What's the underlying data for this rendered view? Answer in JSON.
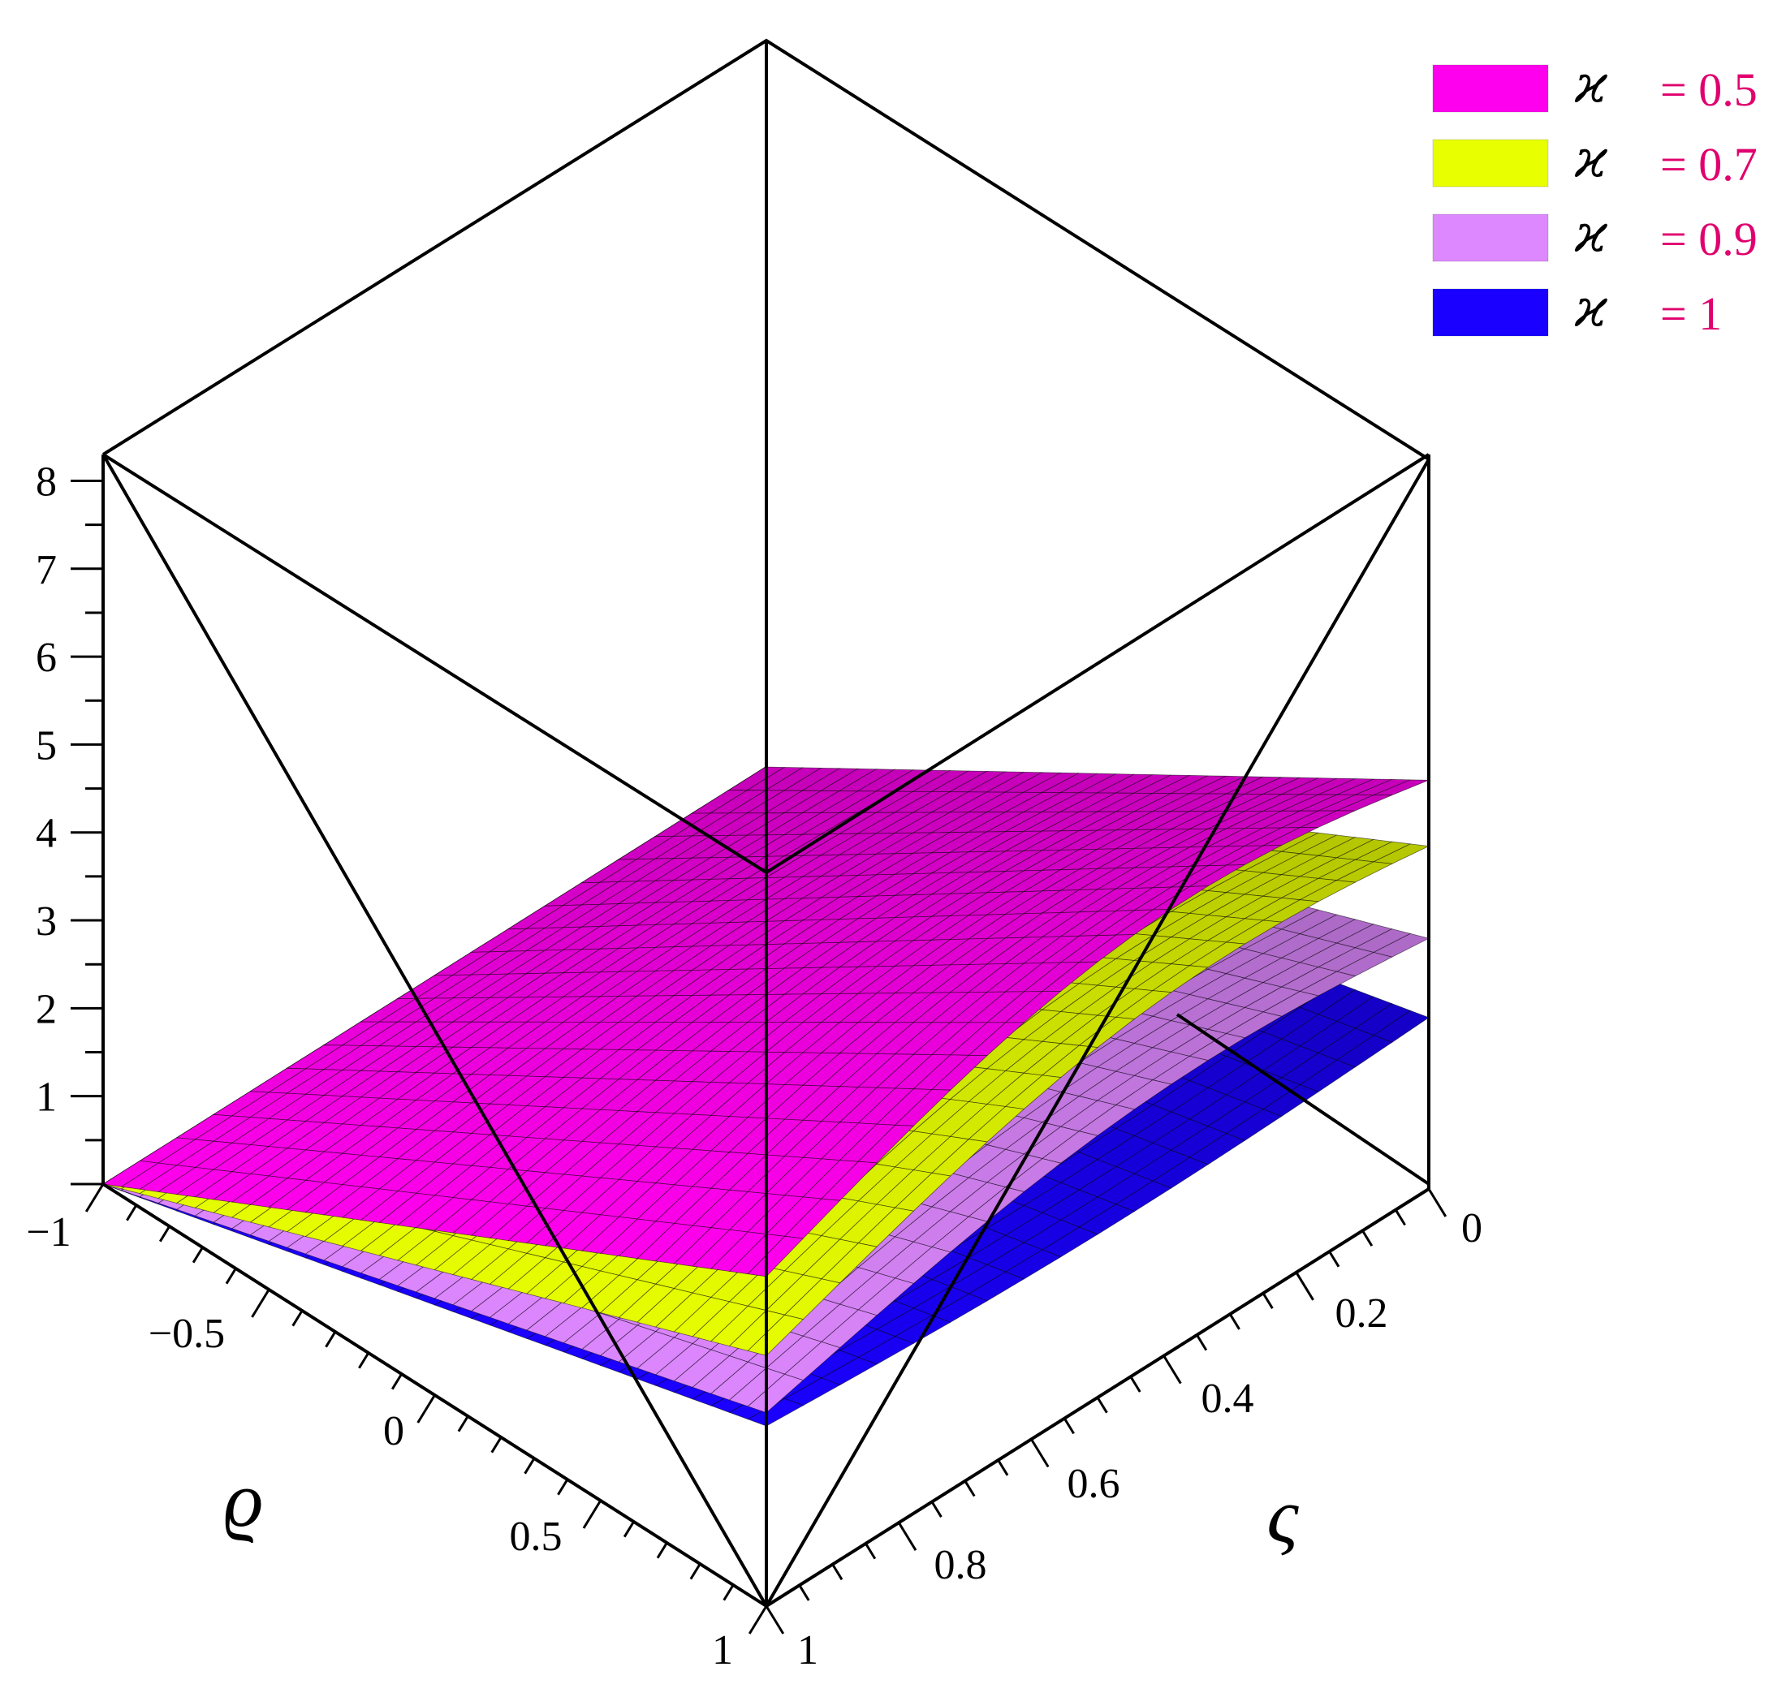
{
  "chart_data": {
    "type": "surface3d",
    "title": "",
    "axes": {
      "x": {
        "label": "ϱ",
        "range": [
          -1,
          1
        ],
        "ticks": [
          "−1",
          "−0.5",
          "0",
          "0.5",
          "1"
        ]
      },
      "y": {
        "label": "ς",
        "range": [
          0,
          1
        ],
        "ticks": [
          "0",
          "0.2",
          "0.4",
          "0.6",
          "0.8",
          "1"
        ]
      },
      "z": {
        "label": "",
        "range": [
          0,
          8.3
        ],
        "ticks": [
          "1",
          "2",
          "3",
          "4",
          "5",
          "6",
          "7",
          "8"
        ]
      }
    },
    "legend": {
      "placement": "top-right",
      "symbol": "ϰ",
      "value_color": "#e0006e"
    },
    "series": [
      {
        "name": "ϰ  = 0.5",
        "parameter": 0.5,
        "color": "#ff00ee",
        "z_at_x_minus1": 0,
        "z_at_x1_y0": 4.65,
        "z_at_x1_y1": 3.75
      },
      {
        "name": "ϰ  = 0.7",
        "parameter": 0.7,
        "color": "#e8ff00",
        "z_at_x_minus1": 0,
        "z_at_x1_y0": 3.9,
        "z_at_x1_y1": 2.85
      },
      {
        "name": "ϰ  = 0.9",
        "parameter": 0.9,
        "color": "#de88ff",
        "z_at_x_minus1": 0,
        "z_at_x1_y0": 2.85,
        "z_at_x1_y1": 2.2
      },
      {
        "name": "ϰ  = 1",
        "parameter": 1,
        "color": "#1a00ff",
        "z_at_x_minus1": 0,
        "z_at_x1_y0": 1.95,
        "z_at_x1_y1": 2.05
      }
    ]
  }
}
